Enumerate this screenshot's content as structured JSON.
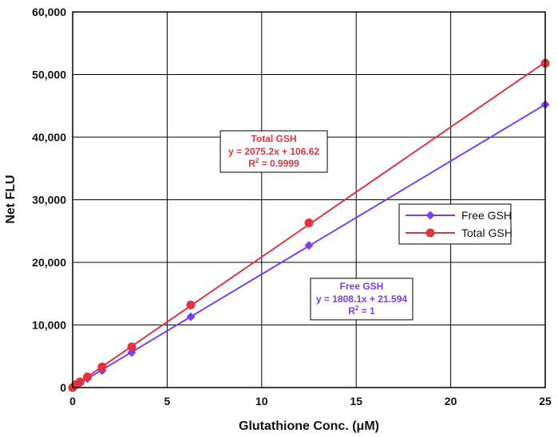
{
  "chart_data": {
    "type": "scatter",
    "xlabel": "Glutathione Conc. (μM)",
    "ylabel": "Net FLU",
    "xlim": [
      0,
      25
    ],
    "ylim": [
      0,
      60000
    ],
    "x_ticks": [
      0,
      5,
      10,
      15,
      20,
      25
    ],
    "y_ticks": [
      0,
      10000,
      20000,
      30000,
      40000,
      50000,
      60000
    ],
    "x_tick_labels": [
      "0",
      "5",
      "10",
      "15",
      "20",
      "25"
    ],
    "y_tick_labels": [
      "0",
      "10,000",
      "20,000",
      "30,000",
      "40,000",
      "50,000",
      "60,000"
    ],
    "grid": true,
    "legend_position": "center-right",
    "series": [
      {
        "name": "Free GSH",
        "color": "#7a3ff0",
        "marker": "diamond",
        "x": [
          0,
          0.195,
          0.39,
          0.78,
          1.56,
          3.125,
          6.25,
          12.5,
          25
        ],
        "y": [
          0,
          380,
          730,
          1420,
          2700,
          5600,
          11300,
          22700,
          45200
        ],
        "trendline": {
          "slope": 1808.1,
          "intercept": 21.594
        }
      },
      {
        "name": "Total GSH",
        "color": "#e0343f",
        "marker": "circle",
        "x": [
          0,
          0.195,
          0.39,
          0.78,
          1.56,
          3.125,
          6.25,
          12.5,
          25
        ],
        "y": [
          0,
          500,
          900,
          1700,
          3300,
          6500,
          13200,
          26300,
          51800
        ],
        "trendline": {
          "slope": 2075.2,
          "intercept": 106.62
        }
      }
    ],
    "annotations": [
      {
        "series": "Total GSH",
        "color": "#e0343f",
        "title": "Total GSH",
        "equation": "y = 2075.2x + 106.62",
        "r2_prefix": "R",
        "r2_sup": "2",
        "r2_value": " = 0.9999"
      },
      {
        "series": "Free GSH",
        "color": "#7a3ff0",
        "title": "Free GSH",
        "equation": "y = 1808.1x + 21.594",
        "r2_prefix": "R",
        "r2_sup": "2",
        "r2_value": " = 1"
      }
    ]
  }
}
